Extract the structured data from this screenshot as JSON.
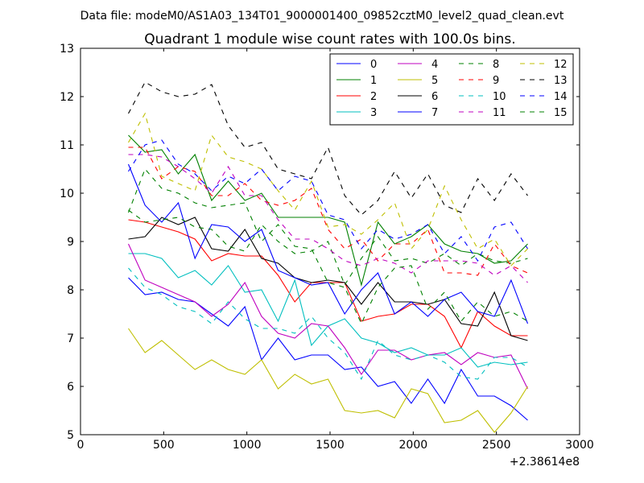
{
  "chart_data": {
    "type": "line",
    "suptitle": "Data file: modeM0/AS1A03_134T01_9000001400_09852cztM0_level2_quad_clean.evt",
    "title": "Quadrant 1 module wise count rates with 100.0s bins.",
    "xlabel": "",
    "ylabel": "",
    "x_offset_label": "+2.38614e8",
    "xlim": [
      0,
      3000
    ],
    "ylim": [
      5,
      13
    ],
    "xticks": [
      "0",
      "500",
      "1000",
      "1500",
      "2000",
      "2500",
      "3000"
    ],
    "yticks": [
      "5",
      "6",
      "7",
      "8",
      "9",
      "10",
      "11",
      "12",
      "13"
    ],
    "grid": false,
    "legend_position": "top-right",
    "legend_columns": 4,
    "x": [
      288,
      388,
      488,
      588,
      688,
      788,
      888,
      988,
      1088,
      1188,
      1288,
      1388,
      1488,
      1588,
      1688,
      1788,
      1888,
      1988,
      2088,
      2188,
      2288,
      2388,
      2488,
      2588,
      2688
    ],
    "series": [
      {
        "name": "0",
        "color": "#0000ff",
        "dash": "solid",
        "values": [
          8.25,
          7.9,
          7.95,
          7.8,
          7.75,
          7.5,
          7.25,
          7.65,
          6.55,
          7.0,
          6.55,
          6.65,
          6.65,
          6.35,
          6.4,
          6.0,
          6.1,
          5.65,
          6.15,
          5.65,
          6.35,
          5.8,
          5.8,
          5.6,
          5.3
        ]
      },
      {
        "name": "1",
        "color": "#008000",
        "dash": "solid",
        "values": [
          11.2,
          10.85,
          10.9,
          10.4,
          10.8,
          9.85,
          10.25,
          9.85,
          10.0,
          9.5,
          9.5,
          9.5,
          9.5,
          9.4,
          8.1,
          9.4,
          8.95,
          9.1,
          9.35,
          8.95,
          8.8,
          8.75,
          8.55,
          8.6,
          8.95
        ]
      },
      {
        "name": "2",
        "color": "#ff0000",
        "dash": "solid",
        "values": [
          9.45,
          9.4,
          9.3,
          9.2,
          9.05,
          8.6,
          8.75,
          8.7,
          8.7,
          8.3,
          7.75,
          8.15,
          8.15,
          8.15,
          7.35,
          7.45,
          7.5,
          7.7,
          7.7,
          7.45,
          6.8,
          7.55,
          7.25,
          7.05,
          7.05
        ]
      },
      {
        "name": "3",
        "color": "#00bfbf",
        "dash": "solid",
        "values": [
          8.75,
          8.75,
          8.65,
          8.25,
          8.4,
          8.1,
          8.5,
          7.95,
          8.0,
          7.35,
          8.2,
          6.85,
          7.25,
          7.4,
          7.0,
          6.9,
          6.7,
          6.8,
          6.65,
          6.65,
          6.8,
          6.4,
          6.5,
          6.45,
          6.5
        ]
      },
      {
        "name": "4",
        "color": "#bf00bf",
        "dash": "solid",
        "values": [
          8.95,
          8.2,
          8.05,
          7.9,
          7.75,
          7.45,
          7.7,
          8.15,
          7.45,
          7.1,
          7.0,
          7.3,
          7.25,
          6.8,
          6.25,
          6.75,
          6.75,
          6.55,
          6.65,
          6.7,
          6.45,
          6.7,
          6.6,
          6.65,
          5.95
        ]
      },
      {
        "name": "5",
        "color": "#bfbf00",
        "dash": "solid",
        "values": [
          7.2,
          6.7,
          6.95,
          6.65,
          6.35,
          6.55,
          6.35,
          6.25,
          6.55,
          5.95,
          6.25,
          6.05,
          6.15,
          5.5,
          5.45,
          5.5,
          5.35,
          5.95,
          5.85,
          5.25,
          5.3,
          5.5,
          5.05,
          5.45,
          6.0
        ]
      },
      {
        "name": "6",
        "color": "#000000",
        "dash": "solid",
        "values": [
          9.05,
          9.1,
          9.5,
          9.35,
          9.5,
          8.85,
          8.8,
          9.25,
          8.65,
          8.55,
          8.25,
          8.15,
          8.2,
          8.15,
          7.7,
          8.15,
          7.75,
          7.75,
          7.7,
          7.8,
          7.3,
          7.25,
          7.95,
          7.05,
          6.95
        ]
      },
      {
        "name": "7",
        "color": "#0000ff",
        "dash": "solid",
        "values": [
          10.6,
          9.75,
          9.4,
          9.8,
          8.65,
          9.35,
          9.3,
          9.0,
          9.25,
          8.4,
          8.25,
          8.1,
          8.15,
          7.5,
          8.0,
          8.35,
          7.5,
          7.75,
          7.45,
          7.8,
          7.95,
          7.55,
          7.45,
          8.2,
          7.3
        ]
      },
      {
        "name": "8",
        "color": "#008000",
        "dash": "dashed",
        "values": [
          9.65,
          9.4,
          9.45,
          9.5,
          9.3,
          9.25,
          8.9,
          8.8,
          9.35,
          9.0,
          8.75,
          8.8,
          9.0,
          8.1,
          8.65,
          9.1,
          8.6,
          8.65,
          8.55,
          8.75,
          8.5,
          8.75,
          8.6,
          8.55,
          8.65
        ]
      },
      {
        "name": "9",
        "color": "#ff0000",
        "dash": "dashed",
        "values": [
          10.95,
          10.95,
          10.3,
          10.55,
          10.45,
          9.95,
          9.95,
          10.2,
          9.85,
          9.75,
          9.85,
          10.1,
          9.25,
          8.85,
          9.05,
          8.6,
          8.95,
          8.95,
          9.25,
          8.35,
          8.35,
          8.3,
          8.95,
          8.5,
          8.35
        ]
      },
      {
        "name": "10",
        "color": "#00bfbf",
        "dash": "dashed",
        "values": [
          8.45,
          8.05,
          7.9,
          7.65,
          7.55,
          7.3,
          7.75,
          7.4,
          7.2,
          7.2,
          7.1,
          7.45,
          7.0,
          6.7,
          6.15,
          6.95,
          6.65,
          6.55,
          6.65,
          6.5,
          6.2,
          6.15,
          6.6,
          6.6,
          6.4
        ]
      },
      {
        "name": "11",
        "color": "#bf00bf",
        "dash": "dashed",
        "values": [
          10.8,
          10.8,
          10.75,
          10.55,
          10.3,
          10.0,
          10.55,
          9.95,
          9.95,
          9.45,
          9.05,
          9.05,
          8.85,
          8.6,
          8.5,
          8.65,
          8.55,
          8.35,
          8.6,
          8.6,
          8.6,
          8.55,
          8.3,
          8.5,
          8.15
        ]
      },
      {
        "name": "12",
        "color": "#bfbf00",
        "dash": "dashed",
        "values": [
          11.05,
          11.65,
          10.35,
          10.2,
          10.05,
          11.2,
          10.75,
          10.65,
          10.5,
          10.05,
          9.65,
          10.25,
          9.3,
          9.35,
          9.15,
          9.45,
          9.8,
          8.85,
          9.25,
          10.15,
          9.45,
          8.85,
          9.05,
          8.5,
          8.85
        ]
      },
      {
        "name": "13",
        "color": "#000000",
        "dash": "dashed",
        "values": [
          11.65,
          12.3,
          12.1,
          12.0,
          12.05,
          12.25,
          11.4,
          10.95,
          11.05,
          10.5,
          10.4,
          10.3,
          10.95,
          9.95,
          9.55,
          9.85,
          10.45,
          9.9,
          10.4,
          9.75,
          9.6,
          10.3,
          9.85,
          10.4,
          9.95
        ]
      },
      {
        "name": "14",
        "color": "#0000ff",
        "dash": "dashed",
        "values": [
          10.45,
          11.0,
          11.1,
          10.6,
          10.4,
          10.05,
          10.35,
          10.2,
          10.5,
          10.05,
          10.35,
          10.25,
          9.55,
          9.45,
          8.85,
          9.25,
          9.05,
          9.15,
          9.35,
          8.75,
          9.1,
          8.6,
          9.3,
          9.4,
          8.85
        ]
      },
      {
        "name": "15",
        "color": "#008000",
        "dash": "dashed",
        "values": [
          9.6,
          10.5,
          10.1,
          10.0,
          9.8,
          9.7,
          9.75,
          9.8,
          9.0,
          9.35,
          8.9,
          8.85,
          8.15,
          8.05,
          7.3,
          8.05,
          8.45,
          8.5,
          7.6,
          7.95,
          7.35,
          7.75,
          7.45,
          7.55,
          7.35
        ]
      }
    ]
  }
}
